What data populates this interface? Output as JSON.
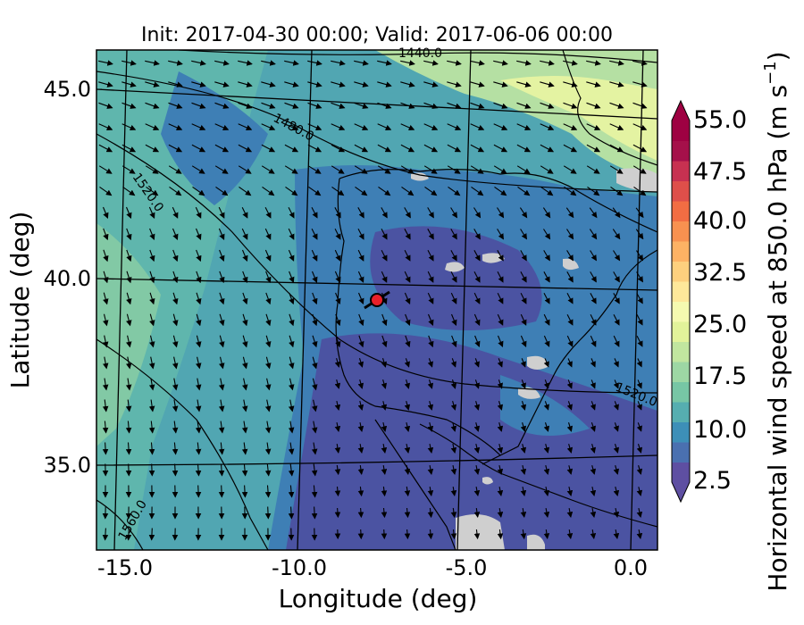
{
  "title": "Init: 2017-04-30 00:00; Valid: 2017-06-06 00:00",
  "x_axis": {
    "label": "Longitude (deg)",
    "ticks": [
      "-15.0",
      "-10.0",
      "-5.0",
      "0.0"
    ]
  },
  "y_axis": {
    "label": "Latitude (deg)",
    "ticks": [
      "45.0",
      "40.0",
      "35.0"
    ]
  },
  "colorbar": {
    "label": "Horizontal wind speed at 850.0 hPa (m s$^{-1}$)",
    "label_main": "Horizontal wind speed at 850.0 hPa (m s",
    "label_exp": "−1",
    "label_close": ")",
    "ticks": [
      "55.0",
      "47.5",
      "40.0",
      "32.5",
      "25.0",
      "17.5",
      "10.0",
      "2.5"
    ],
    "min": 2.5,
    "max": 55.0,
    "colors": [
      "#5e4fa2",
      "#4a70b0",
      "#3d8fb8",
      "#56aeb0",
      "#77c6a5",
      "#9dd7a4",
      "#c1e69f",
      "#e2f39a",
      "#f5fab0",
      "#fee89a",
      "#fdd07e",
      "#fdb264",
      "#f89150",
      "#f26d43",
      "#de4f4a",
      "#c73151",
      "#a5104a",
      "#9e0142"
    ],
    "colors_extend": {
      "under": "#5e4fa2",
      "over": "#9e0142"
    }
  },
  "contour_labels": [
    "1440.0",
    "1480.0",
    "1520.0",
    "1520.0",
    "1560.0"
  ],
  "map": {
    "lon_range": [
      -16,
      0
    ],
    "lat_range": [
      32.5,
      46.5
    ],
    "colors": {
      "deep_blue": "#4b53a2",
      "mid_blue": "#3e7fb5",
      "teal": "#51a6b2",
      "green": "#76c4a6",
      "light_green": "#b5e0a3",
      "yellow_green": "#e4f3a2",
      "missing": "#cfcfcf"
    },
    "marker": {
      "lon": -7.7,
      "lat": 39.4,
      "color": "#e8202a"
    }
  }
}
